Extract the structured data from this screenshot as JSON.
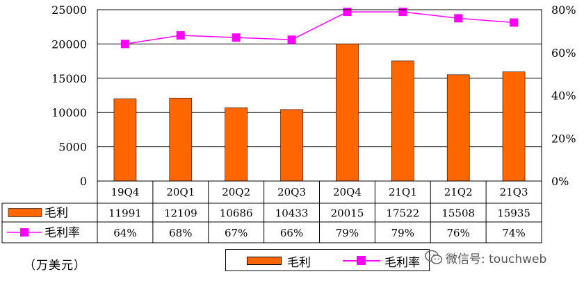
{
  "chart_data": {
    "type": "bar+line",
    "categories": [
      "19Q4",
      "20Q1",
      "20Q2",
      "20Q3",
      "20Q4",
      "21Q1",
      "21Q2",
      "21Q3"
    ],
    "series": [
      {
        "name": "毛利",
        "type": "bar",
        "axis": "left",
        "values": [
          11991,
          12109,
          10686,
          10433,
          20015,
          17522,
          15508,
          15935
        ],
        "labels": [
          "11991",
          "12109",
          "10686",
          "10433",
          "20015",
          "17522",
          "15508",
          "15935"
        ]
      },
      {
        "name": "毛利率",
        "type": "line",
        "axis": "right",
        "values": [
          64,
          68,
          67,
          66,
          79,
          79,
          76,
          74
        ],
        "labels": [
          "64%",
          "68%",
          "67%",
          "66%",
          "79%",
          "79%",
          "76%",
          "74%"
        ]
      }
    ],
    "left_axis": {
      "min": 0,
      "max": 25000,
      "ticks": [
        0,
        5000,
        10000,
        15000,
        20000,
        25000
      ]
    },
    "right_axis": {
      "min": 0,
      "max": 80,
      "ticks": [
        "0%",
        "20%",
        "40%",
        "60%",
        "80%"
      ]
    },
    "unit": "（万美元）",
    "data_table": true,
    "colors": {
      "bar": "#FF6600",
      "line": "#FF00FF"
    }
  },
  "watermark": {
    "text": "微信号: touchweb",
    "icon": "wechat-icon"
  }
}
